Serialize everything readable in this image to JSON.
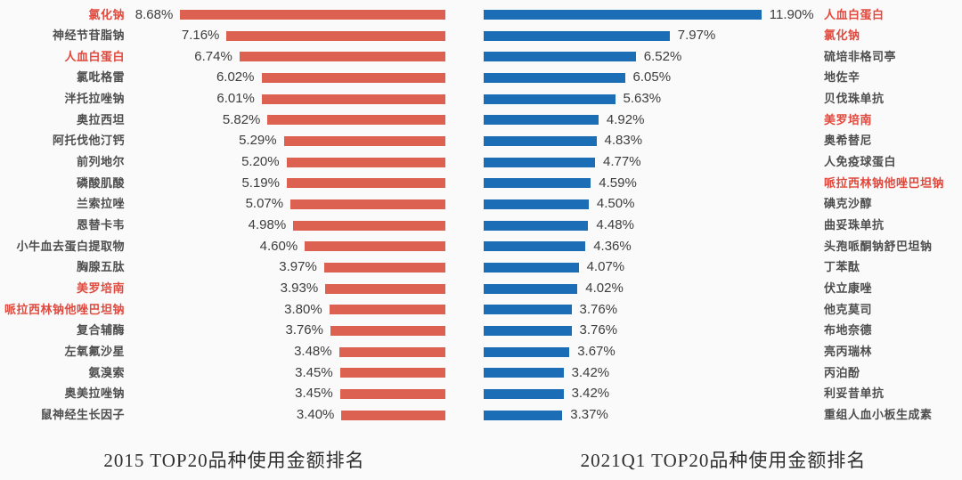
{
  "colors": {
    "background": "#fbfafa",
    "left_bar": "#dd6150",
    "right_bar": "#1b6eb5",
    "highlight_text": "#e04a3e",
    "label_text": "#4e4e4e",
    "value_text": "#3d3d3d",
    "title_text": "#2f2f2f"
  },
  "chart_data": [
    {
      "type": "bar",
      "orientation": "horizontal",
      "anchor": "right",
      "title": "2015 TOP20品种使用金额排名",
      "unit": "%",
      "xlim": [
        0,
        8.68
      ],
      "grid": false,
      "legend": false,
      "bar_color": "#dd6150",
      "categories": [
        "氯化钠",
        "神经节苷脂钠",
        "人血白蛋白",
        "氯吡格雷",
        "泮托拉唑钠",
        "奥拉西坦",
        "阿托伐他汀钙",
        "前列地尔",
        "磷酸肌酸",
        "兰索拉唑",
        "恩替卡韦",
        "小牛血去蛋白提取物",
        "胸腺五肽",
        "美罗培南",
        "哌拉西林钠他唑巴坦钠",
        "复合辅酶",
        "左氧氟沙星",
        "氨溴索",
        "奥美拉唑钠",
        "鼠神经生长因子"
      ],
      "values": [
        8.68,
        7.16,
        6.74,
        6.02,
        6.01,
        5.82,
        5.29,
        5.2,
        5.19,
        5.07,
        4.98,
        4.6,
        3.97,
        3.93,
        3.8,
        3.76,
        3.48,
        3.45,
        3.45,
        3.4
      ],
      "value_labels": [
        "8.68%",
        "7.16%",
        "6.74%",
        "6.02%",
        "6.01%",
        "5.82%",
        "5.29%",
        "5.20%",
        "5.19%",
        "5.07%",
        "4.98%",
        "4.60%",
        "3.97%",
        "3.93%",
        "3.80%",
        "3.76%",
        "3.48%",
        "3.45%",
        "3.45%",
        "3.40%"
      ],
      "highlighted": [
        true,
        false,
        true,
        false,
        false,
        false,
        false,
        false,
        false,
        false,
        false,
        false,
        false,
        true,
        true,
        false,
        false,
        false,
        false,
        false
      ]
    },
    {
      "type": "bar",
      "orientation": "horizontal",
      "anchor": "left",
      "title": "2021Q1 TOP20品种使用金额排名",
      "unit": "%",
      "xlim": [
        0,
        11.9
      ],
      "grid": false,
      "legend": false,
      "bar_color": "#1b6eb5",
      "categories": [
        "人血白蛋白",
        "氯化钠",
        "硫培非格司亭",
        "地佐辛",
        "贝伐珠单抗",
        "美罗培南",
        "奥希替尼",
        "人免疫球蛋白",
        "哌拉西林钠他唑巴坦钠",
        "碘克沙醇",
        "曲妥珠单抗",
        "头孢哌酮钠舒巴坦钠",
        "丁苯酞",
        "伏立康唑",
        "他克莫司",
        "布地奈德",
        "亮丙瑞林",
        "丙泊酚",
        "利妥昔单抗",
        "重组人血小板生成素"
      ],
      "values": [
        11.9,
        7.97,
        6.52,
        6.05,
        5.63,
        4.92,
        4.83,
        4.77,
        4.59,
        4.5,
        4.48,
        4.36,
        4.07,
        4.02,
        3.76,
        3.76,
        3.67,
        3.42,
        3.42,
        3.37
      ],
      "value_labels": [
        "11.90%",
        "7.97%",
        "6.52%",
        "6.05%",
        "5.63%",
        "4.92%",
        "4.83%",
        "4.77%",
        "4.59%",
        "4.50%",
        "4.48%",
        "4.36%",
        "4.07%",
        "4.02%",
        "3.76%",
        "3.76%",
        "3.67%",
        "3.42%",
        "3.42%",
        "3.37%"
      ],
      "highlighted": [
        true,
        true,
        false,
        false,
        false,
        true,
        false,
        false,
        true,
        false,
        false,
        false,
        false,
        false,
        false,
        false,
        false,
        false,
        false,
        false
      ]
    }
  ]
}
